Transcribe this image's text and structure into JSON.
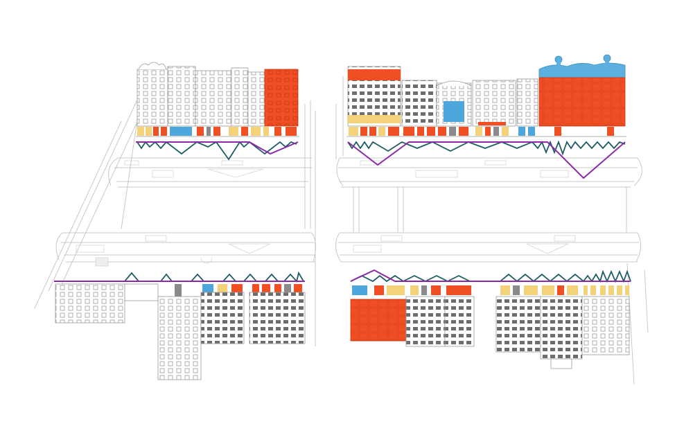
{
  "colors": {
    "orange": "#f04e23",
    "yellow": "#f3d27a",
    "blue": "#4ea7dc",
    "gray": "#8a8a8a",
    "purple": "#8b2aa6",
    "teal": "#1e5c63",
    "line": "#bdbdbd",
    "sky": "#5bb0e0"
  },
  "panels": [
    {
      "id": "top-left",
      "role": "upper-street-elevation"
    },
    {
      "id": "top-right",
      "role": "upper-street-elevation"
    },
    {
      "id": "bottom-left",
      "role": "lower-street-elevation"
    },
    {
      "id": "bottom-right",
      "role": "lower-street-elevation"
    }
  ]
}
